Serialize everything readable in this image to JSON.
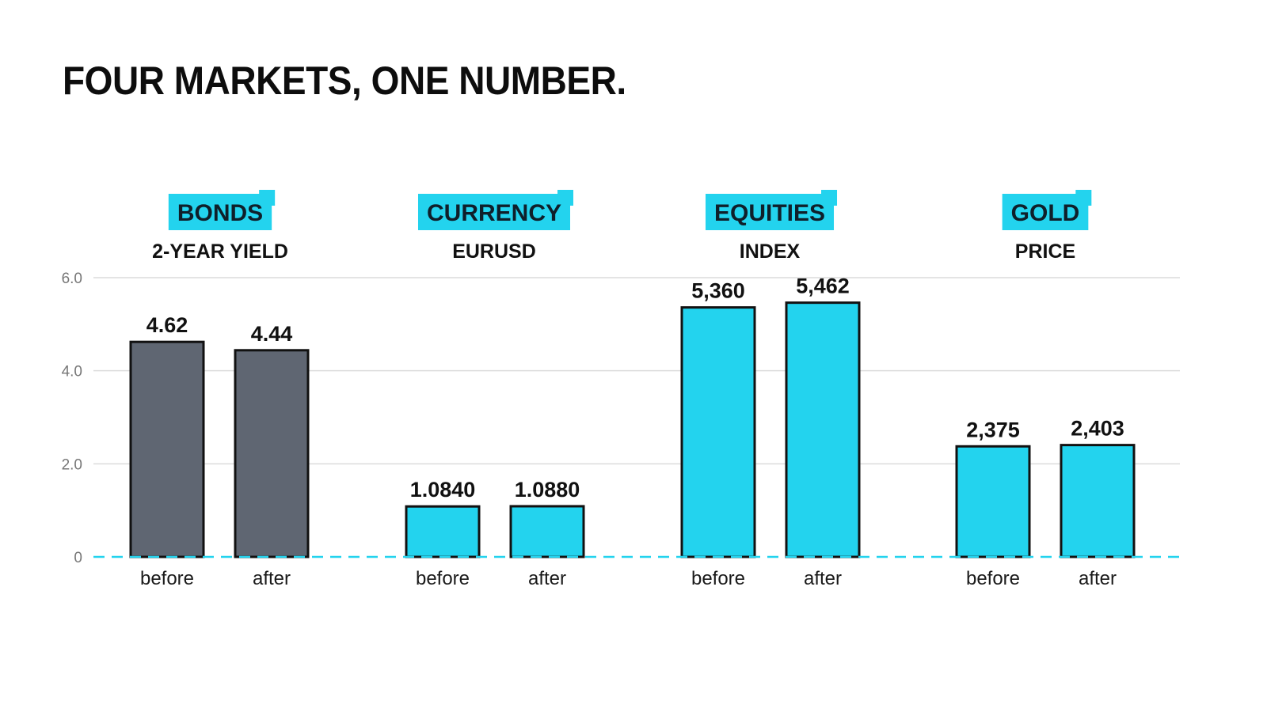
{
  "page": {
    "title": "FOUR MARKETS, ONE NUMBER."
  },
  "colors": {
    "accent": "#23d3ee",
    "bonds_bar": "#5f6672",
    "bar_outline": "#111111",
    "tag_background": "#23d3ee",
    "grid": "#dcdcdc"
  },
  "chart_data": {
    "type": "bar",
    "title": "FOUR MARKETS, ONE NUMBER.",
    "xlabel": "",
    "ylabel": "",
    "ylim": [
      0,
      6
    ],
    "y_ticks": [
      "0",
      "2.0",
      "4.0",
      "6.0"
    ],
    "y_tick_values": [
      0,
      2,
      4,
      6
    ],
    "grid": true,
    "baseline_style": "dashed",
    "groups": [
      {
        "tag": "BONDS",
        "subtitle": "2-YEAR YIELD",
        "color": "#5f6672",
        "bars": [
          {
            "label": "before",
            "value_label": "4.62",
            "height": 4.62
          },
          {
            "label": "after",
            "value_label": "4.44",
            "height": 4.44
          }
        ]
      },
      {
        "tag": "CURRENCY",
        "subtitle": "EURUSD",
        "color": "#23d3ee",
        "bars": [
          {
            "label": "before",
            "value_label": "1.0840",
            "height": 1.084
          },
          {
            "label": "after",
            "value_label": "1.0880",
            "height": 1.088
          }
        ]
      },
      {
        "tag": "EQUITIES",
        "subtitle": "INDEX",
        "color": "#23d3ee",
        "bars": [
          {
            "label": "before",
            "value_label": "5,360",
            "height": 5.36
          },
          {
            "label": "after",
            "value_label": "5,462",
            "height": 5.462
          }
        ]
      },
      {
        "tag": "GOLD",
        "subtitle": "PRICE",
        "color": "#23d3ee",
        "bars": [
          {
            "label": "before",
            "value_label": "2,375",
            "height": 2.375
          },
          {
            "label": "after",
            "value_label": "2,403",
            "height": 2.403
          }
        ]
      }
    ]
  }
}
